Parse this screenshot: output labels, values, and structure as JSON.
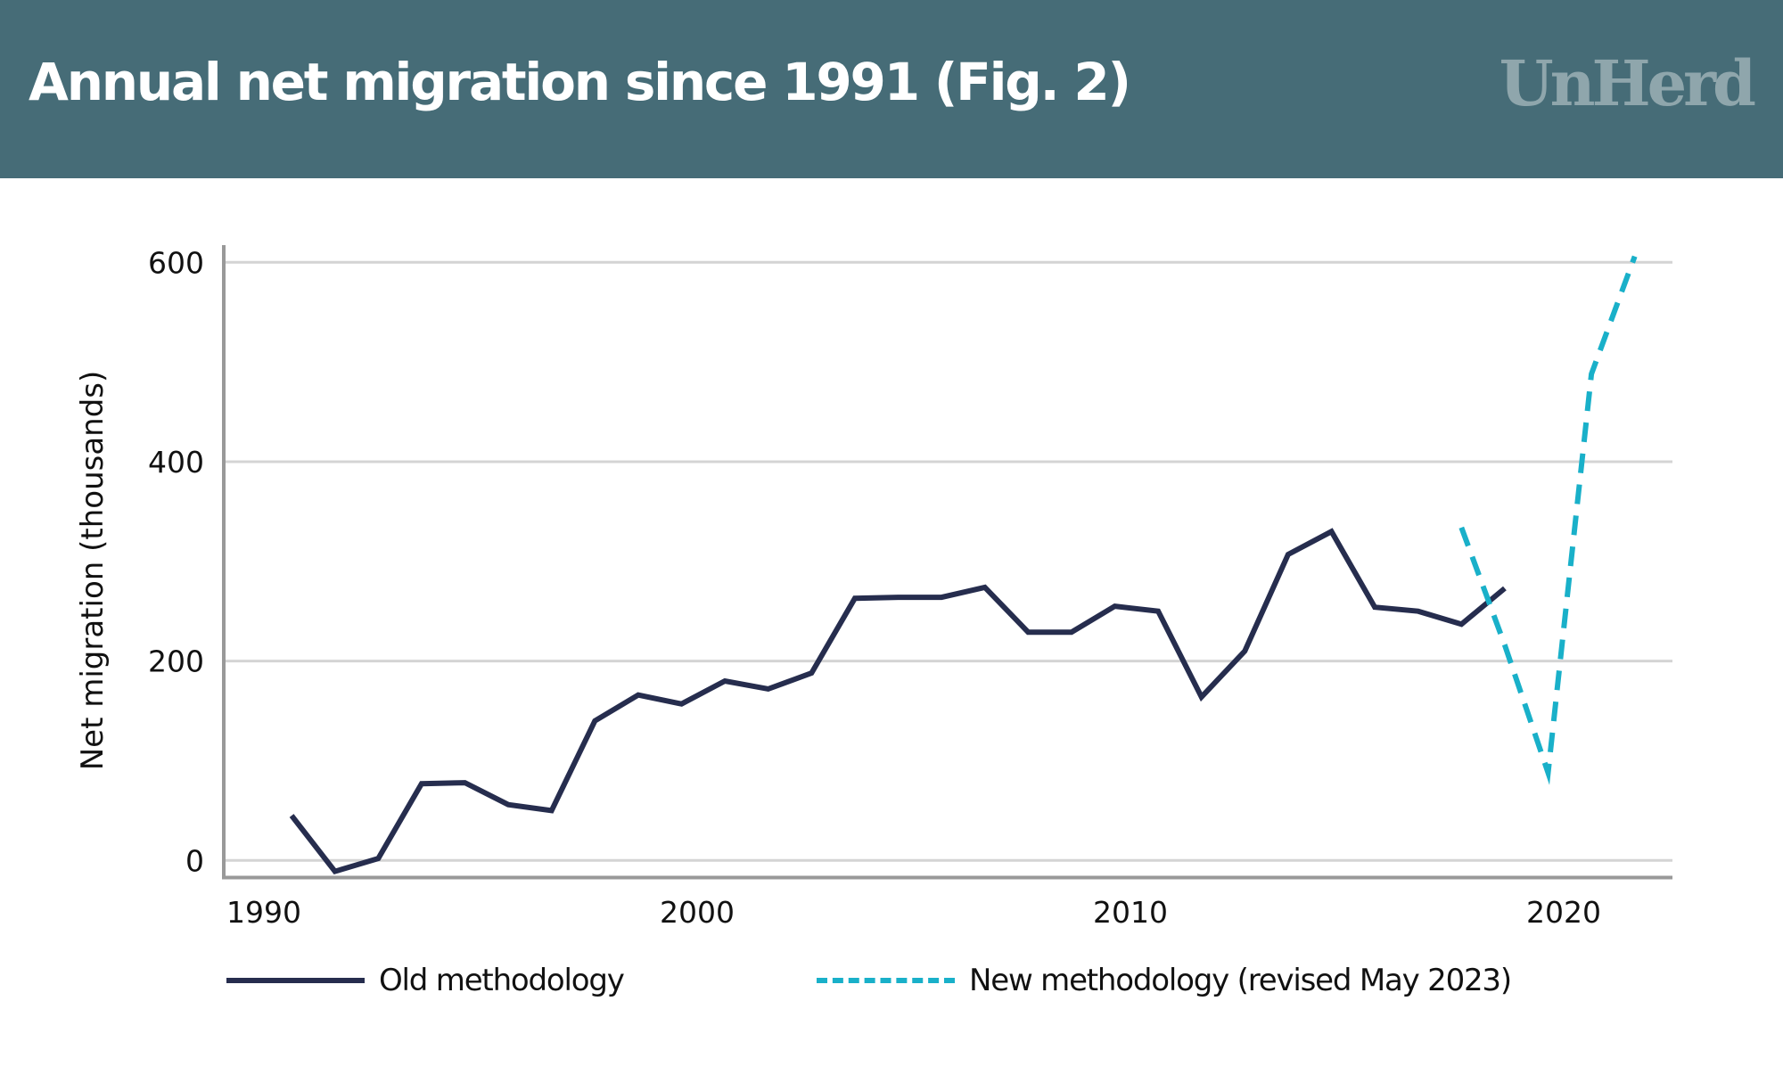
{
  "header": {
    "title": "Annual net migration since 1991 (Fig. 2)",
    "logo": "UnHerd",
    "background_color": "#466c77",
    "logo_color": "#8fa6ac"
  },
  "chart_data": {
    "type": "line",
    "title": "Annual net migration since 1991 (Fig. 2)",
    "xlabel": "",
    "ylabel": "Net migration (thousands)",
    "ylim": [
      -20,
      620
    ],
    "xlim": [
      1989.5,
      2023
    ],
    "x_ticks": [
      1990,
      2000,
      2010,
      2020
    ],
    "y_ticks": [
      0,
      200,
      400,
      600
    ],
    "grid": "horizontal",
    "legend_position": "bottom",
    "series": [
      {
        "name": "Old methodology",
        "style": "solid",
        "color": "#262d4e",
        "x": [
          1991,
          1992,
          1993,
          1994,
          1995,
          1996,
          1997,
          1998,
          1999,
          2000,
          2001,
          2002,
          2003,
          2004,
          2005,
          2006,
          2007,
          2008,
          2009,
          2010,
          2011,
          2012,
          2013,
          2014,
          2015,
          2016,
          2017,
          2018,
          2019
        ],
        "values": [
          45,
          -11,
          2,
          77,
          78,
          56,
          50,
          140,
          166,
          157,
          180,
          172,
          188,
          263,
          264,
          264,
          274,
          229,
          229,
          255,
          250,
          164,
          210,
          307,
          330,
          254,
          250,
          237,
          273
        ]
      },
      {
        "name": "New methodology (revised May 2023)",
        "style": "dashed",
        "color": "#19b0c9",
        "x": [
          2018,
          2019,
          2020,
          2021,
          2022
        ],
        "values": [
          334,
          216,
          88,
          488,
          606
        ]
      }
    ]
  },
  "legend": {
    "items": [
      {
        "label": "Old methodology"
      },
      {
        "label": "New methodology (revised May 2023)"
      }
    ]
  }
}
